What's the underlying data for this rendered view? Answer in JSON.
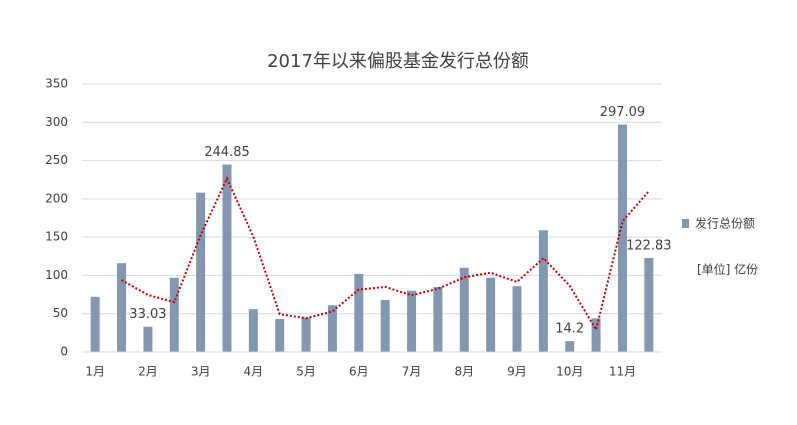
{
  "chart_data": {
    "type": "bar",
    "title": "2017年以来偏股基金发行总份额",
    "categories": [
      "1月",
      null,
      "2月",
      null,
      "3月",
      null,
      "4月",
      null,
      "5月",
      null,
      "6月",
      null,
      "7月",
      null,
      "8月",
      null,
      "9月",
      null,
      "10月",
      null,
      "11月",
      null
    ],
    "series": [
      {
        "name": "发行总份额",
        "color": "#8497b0",
        "values": [
          72,
          116,
          33.03,
          97,
          208,
          244.85,
          56,
          43,
          45,
          61,
          102,
          68,
          80,
          85,
          110,
          97,
          86,
          159,
          14.2,
          44,
          297.09,
          122.83
        ],
        "value_labels": [
          null,
          null,
          "33.03",
          null,
          null,
          "244.85",
          null,
          null,
          null,
          null,
          null,
          null,
          null,
          null,
          null,
          null,
          null,
          null,
          "14.2",
          null,
          "297.09",
          "122.83"
        ]
      }
    ],
    "annotation": "[单位] 亿份",
    "trendline": {
      "type": "moving_average",
      "period": 2,
      "color": "#c00000"
    },
    "ylim": [
      0,
      350
    ],
    "yticks": [
      0,
      50,
      100,
      150,
      200,
      250,
      300,
      350
    ],
    "grid": true,
    "legend": "right"
  }
}
